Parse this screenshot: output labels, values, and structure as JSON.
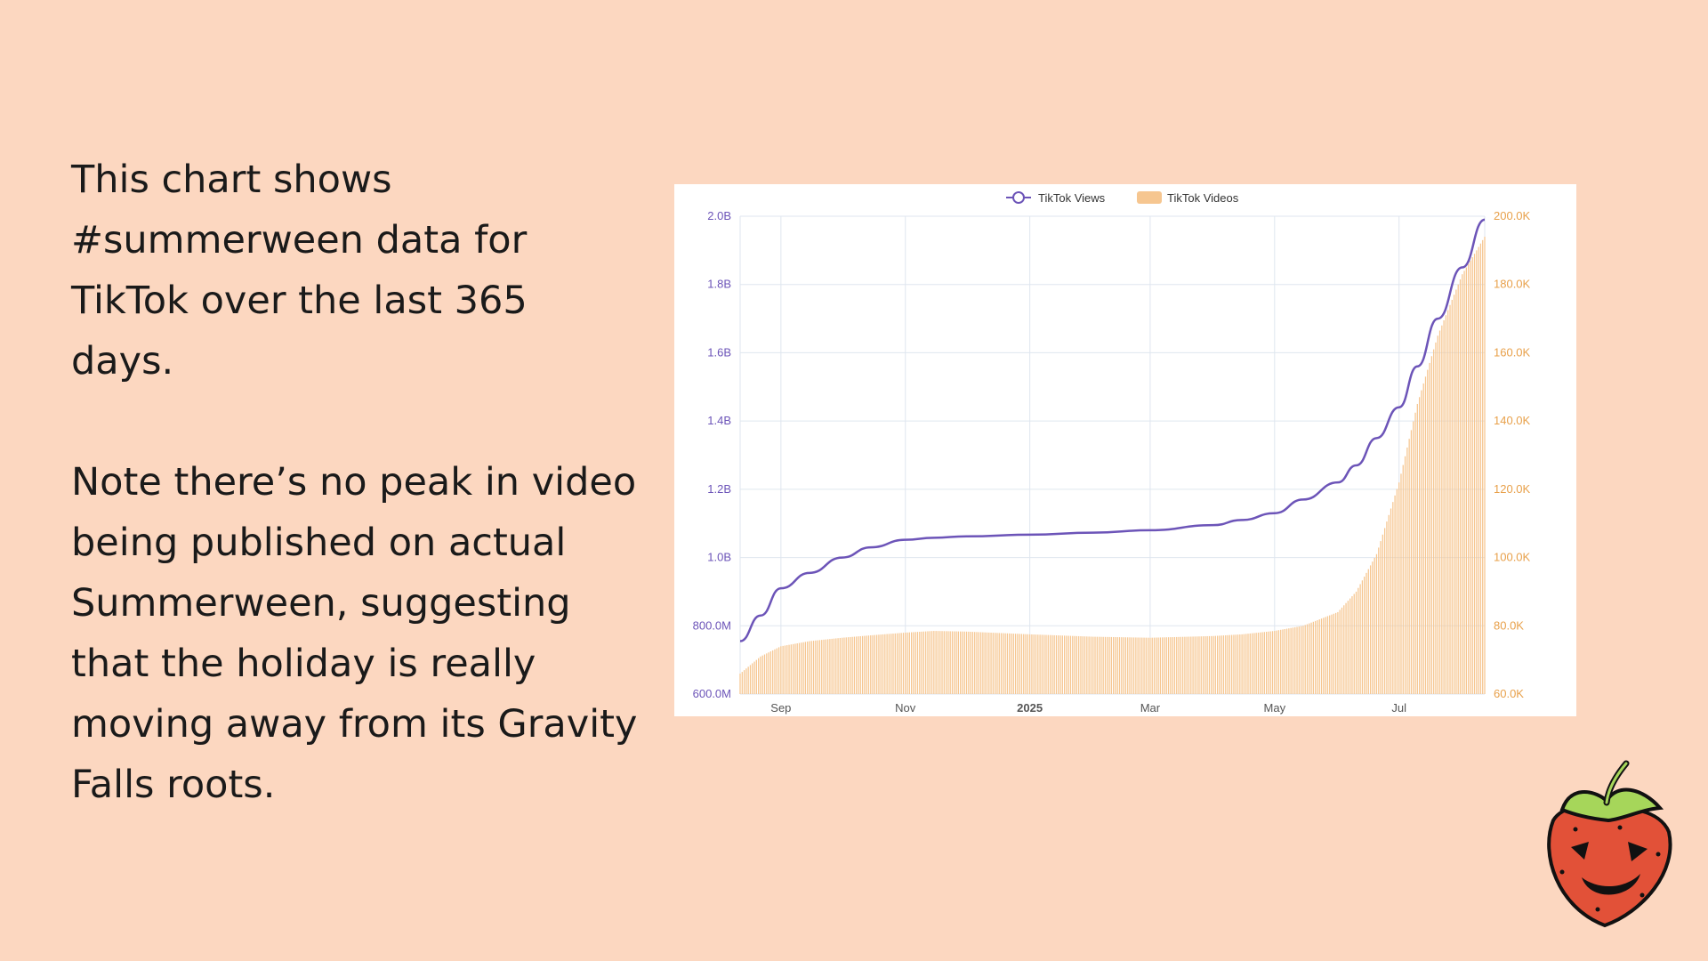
{
  "slide": {
    "paragraph_1": "This chart shows #summerween data for TikTok over the last 365 days.",
    "paragraph_2": "Note there’s no peak in video being published on actual Summerween, suggesting that the holiday is really moving away from its Gravity Falls roots."
  },
  "mascot": {
    "icon": "jack-o-lantern-strawberry-icon"
  },
  "chart_data": {
    "type": "line+bar",
    "title": "",
    "legend": {
      "placement": "top-center",
      "entries": [
        "TikTok Views",
        "TikTok Videos"
      ]
    },
    "grid": true,
    "x_ticks": [
      {
        "label": "Sep",
        "date": "2024-09-01",
        "bold": false
      },
      {
        "label": "Nov",
        "date": "2024-11-01",
        "bold": false
      },
      {
        "label": "2025",
        "date": "2025-01-01",
        "bold": true
      },
      {
        "label": "Mar",
        "date": "2025-03-01",
        "bold": false
      },
      {
        "label": "May",
        "date": "2025-05-01",
        "bold": false
      },
      {
        "label": "Jul",
        "date": "2025-07-01",
        "bold": false
      }
    ],
    "x_range": [
      "2024-08-12",
      "2025-08-12"
    ],
    "y_left": {
      "range": [
        600000000,
        2000000000
      ],
      "ticks": [
        600000000,
        800000000,
        1000000000,
        1200000000,
        1400000000,
        1600000000,
        1800000000,
        2000000000
      ],
      "tick_labels": [
        "600.0M",
        "800.0M",
        "1.0B",
        "1.2B",
        "1.4B",
        "1.6B",
        "1.8B",
        "2.0B"
      ],
      "color": "#6c54b8"
    },
    "y_right": {
      "range": [
        60000,
        200000
      ],
      "ticks": [
        60000,
        80000,
        100000,
        120000,
        140000,
        160000,
        180000,
        200000
      ],
      "tick_labels": [
        "60.0K",
        "80.0K",
        "100.0K",
        "120.0K",
        "140.0K",
        "160.0K",
        "180.0K",
        "200.0K"
      ],
      "color": "#e8a04a"
    },
    "series": [
      {
        "name": "TikTok Views",
        "kind": "line",
        "axis": "left",
        "color": "#6c54b8",
        "points": [
          [
            "2024-08-12",
            755000000
          ],
          [
            "2024-08-22",
            830000000
          ],
          [
            "2024-09-01",
            910000000
          ],
          [
            "2024-09-15",
            955000000
          ],
          [
            "2024-10-01",
            1000000000
          ],
          [
            "2024-10-15",
            1030000000
          ],
          [
            "2024-11-01",
            1052000000
          ],
          [
            "2024-11-15",
            1058000000
          ],
          [
            "2024-12-01",
            1062000000
          ],
          [
            "2025-01-01",
            1067000000
          ],
          [
            "2025-02-01",
            1073000000
          ],
          [
            "2025-03-01",
            1080000000
          ],
          [
            "2025-04-01",
            1095000000
          ],
          [
            "2025-04-15",
            1110000000
          ],
          [
            "2025-05-01",
            1130000000
          ],
          [
            "2025-05-15",
            1170000000
          ],
          [
            "2025-06-01",
            1220000000
          ],
          [
            "2025-06-10",
            1270000000
          ],
          [
            "2025-06-20",
            1350000000
          ],
          [
            "2025-07-01",
            1440000000
          ],
          [
            "2025-07-10",
            1560000000
          ],
          [
            "2025-07-20",
            1700000000
          ],
          [
            "2025-08-01",
            1850000000
          ],
          [
            "2025-08-12",
            1990000000
          ]
        ]
      },
      {
        "name": "TikTok Videos",
        "kind": "bar",
        "axis": "right",
        "color": "#f6c690",
        "points": [
          [
            "2024-08-12",
            66000
          ],
          [
            "2024-08-22",
            71000
          ],
          [
            "2024-09-01",
            74000
          ],
          [
            "2024-09-15",
            75500
          ],
          [
            "2024-10-01",
            76500
          ],
          [
            "2024-10-15",
            77200
          ],
          [
            "2024-11-01",
            78000
          ],
          [
            "2024-11-15",
            78500
          ],
          [
            "2024-12-01",
            78300
          ],
          [
            "2025-01-01",
            77500
          ],
          [
            "2025-02-01",
            76800
          ],
          [
            "2025-03-01",
            76500
          ],
          [
            "2025-04-01",
            77000
          ],
          [
            "2025-04-15",
            77500
          ],
          [
            "2025-05-01",
            78500
          ],
          [
            "2025-05-15",
            80000
          ],
          [
            "2025-06-01",
            84000
          ],
          [
            "2025-06-10",
            90000
          ],
          [
            "2025-06-20",
            101000
          ],
          [
            "2025-07-01",
            122000
          ],
          [
            "2025-07-10",
            145000
          ],
          [
            "2025-07-20",
            165000
          ],
          [
            "2025-08-01",
            183000
          ],
          [
            "2025-08-12",
            194000
          ]
        ]
      }
    ]
  }
}
